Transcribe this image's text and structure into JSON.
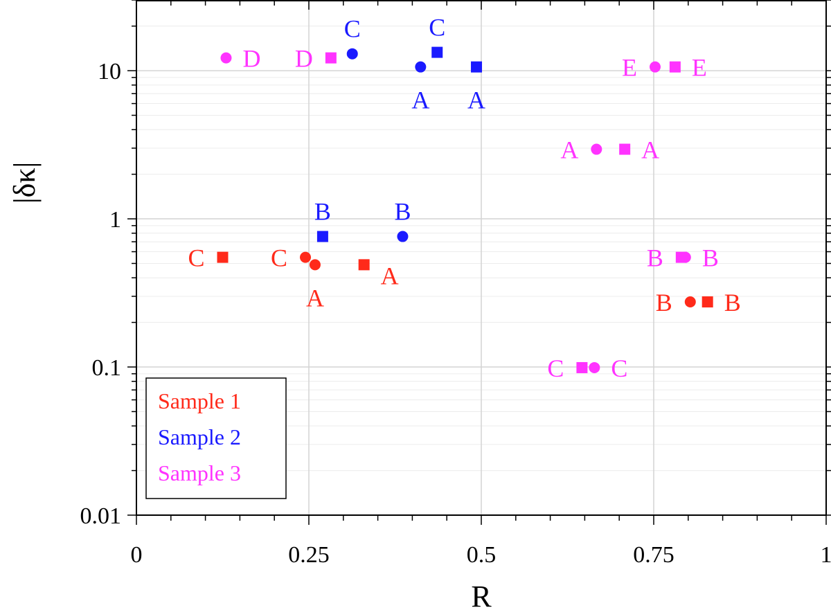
{
  "chart_data": {
    "type": "scatter",
    "xlabel": "R",
    "ylabel": "|δκ|",
    "xlim": [
      0,
      1
    ],
    "ylim": [
      0.01,
      30
    ],
    "yscale": "log",
    "x_ticks": [
      {
        "value": 0,
        "label": "0"
      },
      {
        "value": 0.25,
        "label": "0.25"
      },
      {
        "value": 0.5,
        "label": "0.5"
      },
      {
        "value": 0.75,
        "label": "0.75"
      },
      {
        "value": 1,
        "label": "1"
      }
    ],
    "y_ticks": [
      {
        "value": 0.01,
        "label": "0.01"
      },
      {
        "value": 0.1,
        "label": "0.1"
      },
      {
        "value": 1,
        "label": "1"
      },
      {
        "value": 10,
        "label": "10"
      }
    ],
    "grid": true,
    "legend": {
      "position": "bottom-left",
      "entries": [
        {
          "label": "Sample 1",
          "color": "#ff2a1a"
        },
        {
          "label": "Sample 2",
          "color": "#1a1aff"
        },
        {
          "label": "Sample 3",
          "color": "#ff33ff"
        }
      ]
    },
    "series": [
      {
        "name": "Sample 1",
        "color": "#ff2a1a",
        "points": [
          {
            "x": 0.125,
            "y": 0.55,
            "marker": "square",
            "label": "C",
            "label_pos": "left"
          },
          {
            "x": 0.245,
            "y": 0.55,
            "marker": "circle",
            "label": "C",
            "label_pos": "left"
          },
          {
            "x": 0.259,
            "y": 0.49,
            "marker": "circle",
            "label": "A",
            "label_pos": "below"
          },
          {
            "x": 0.33,
            "y": 0.49,
            "marker": "square",
            "label": "A",
            "label_pos": "right-below"
          },
          {
            "x": 0.803,
            "y": 0.275,
            "marker": "circle",
            "label": "B",
            "label_pos": "left"
          },
          {
            "x": 0.828,
            "y": 0.275,
            "marker": "square",
            "label": "B",
            "label_pos": "right"
          }
        ]
      },
      {
        "name": "Sample 2",
        "color": "#1a1aff",
        "points": [
          {
            "x": 0.27,
            "y": 0.76,
            "marker": "square",
            "label": "B",
            "label_pos": "above"
          },
          {
            "x": 0.386,
            "y": 0.76,
            "marker": "circle",
            "label": "B",
            "label_pos": "above"
          },
          {
            "x": 0.313,
            "y": 13.0,
            "marker": "circle",
            "label": "C",
            "label_pos": "above"
          },
          {
            "x": 0.436,
            "y": 13.3,
            "marker": "square",
            "label": "C",
            "label_pos": "above"
          },
          {
            "x": 0.412,
            "y": 10.6,
            "marker": "circle",
            "label": "A",
            "label_pos": "below"
          },
          {
            "x": 0.493,
            "y": 10.6,
            "marker": "square",
            "label": "A",
            "label_pos": "below"
          }
        ]
      },
      {
        "name": "Sample 3",
        "color": "#ff33ff",
        "points": [
          {
            "x": 0.13,
            "y": 12.2,
            "marker": "circle",
            "label": "D",
            "label_pos": "right"
          },
          {
            "x": 0.282,
            "y": 12.2,
            "marker": "square",
            "label": "D",
            "label_pos": "left"
          },
          {
            "x": 0.752,
            "y": 10.6,
            "marker": "circle",
            "label": "E",
            "label_pos": "left"
          },
          {
            "x": 0.781,
            "y": 10.6,
            "marker": "square",
            "label": "E",
            "label_pos": "right"
          },
          {
            "x": 0.667,
            "y": 2.95,
            "marker": "circle",
            "label": "A",
            "label_pos": "left"
          },
          {
            "x": 0.708,
            "y": 2.95,
            "marker": "square",
            "label": "A",
            "label_pos": "right"
          },
          {
            "x": 0.79,
            "y": 0.55,
            "marker": "square",
            "label": "B",
            "label_pos": "left"
          },
          {
            "x": 0.796,
            "y": 0.55,
            "marker": "circle",
            "label": "B",
            "label_pos": "right"
          },
          {
            "x": 0.646,
            "y": 0.099,
            "marker": "square",
            "label": "C",
            "label_pos": "left"
          },
          {
            "x": 0.664,
            "y": 0.099,
            "marker": "circle",
            "label": "C",
            "label_pos": "right"
          }
        ]
      }
    ]
  }
}
